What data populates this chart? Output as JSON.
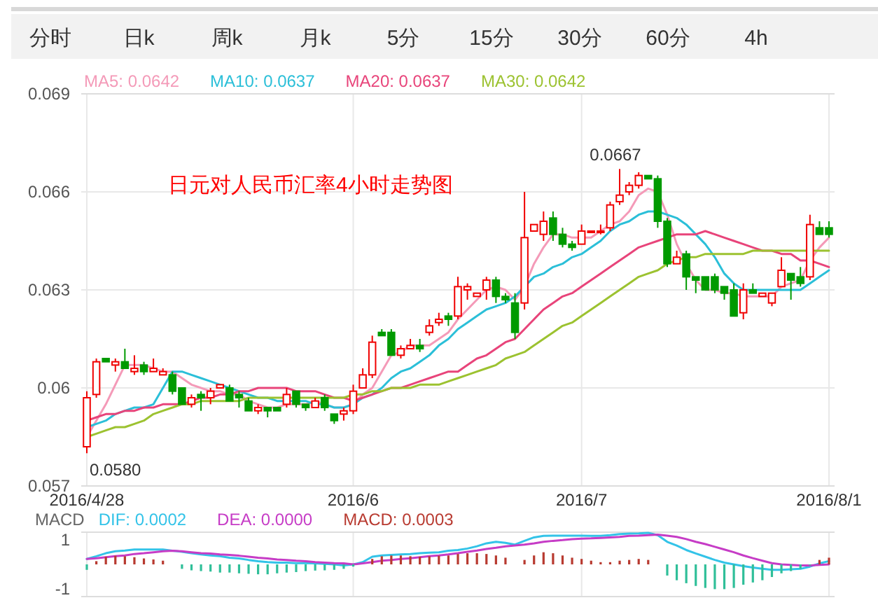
{
  "chart_data": [
    {
      "type": "other",
      "annotations": [
        "分时",
        "日k",
        "周k",
        "月k",
        "5分",
        "15分",
        "30分",
        "60分",
        "4h"
      ]
    },
    {
      "type": "candlestick",
      "grid": true,
      "legend": "top",
      "ylim": [
        0.057,
        0.069
      ],
      "yticks": [
        0.057,
        0.06,
        0.063,
        0.066,
        0.069
      ],
      "categories": [
        "2016/4/28",
        null,
        null,
        null,
        null,
        null,
        null,
        null,
        null,
        null,
        null,
        null,
        null,
        null,
        null,
        null,
        null,
        null,
        null,
        null,
        null,
        null,
        null,
        null,
        null,
        null,
        null,
        null,
        "2016/6",
        null,
        null,
        null,
        null,
        null,
        null,
        null,
        null,
        null,
        null,
        null,
        null,
        null,
        null,
        null,
        null,
        null,
        null,
        null,
        null,
        null,
        null,
        null,
        "2016/7",
        null,
        null,
        null,
        null,
        null,
        null,
        null,
        null,
        null,
        null,
        null,
        null,
        null,
        null,
        null,
        null,
        null,
        null,
        null,
        null,
        null,
        null,
        null,
        null,
        null,
        "2016/8/1"
      ],
      "ohlc": [
        [
          0.0582,
          0.0599,
          0.058,
          0.0597
        ],
        [
          0.0598,
          0.0609,
          0.0597,
          0.0608
        ],
        [
          0.0609,
          0.0609,
          0.0608,
          0.0608
        ],
        [
          0.0607,
          0.0609,
          0.0605,
          0.0608
        ],
        [
          0.0608,
          0.0612,
          0.0606,
          0.0606
        ],
        [
          0.0605,
          0.061,
          0.0604,
          0.0606
        ],
        [
          0.0607,
          0.0608,
          0.0604,
          0.0605
        ],
        [
          0.0605,
          0.0609,
          0.0605,
          0.0606
        ],
        [
          0.0604,
          0.0606,
          0.0604,
          0.0605
        ],
        [
          0.0604,
          0.0605,
          0.0598,
          0.0599
        ],
        [
          0.06,
          0.06,
          0.0595,
          0.0595
        ],
        [
          0.0595,
          0.0598,
          0.0594,
          0.0597
        ],
        [
          0.0598,
          0.0599,
          0.0593,
          0.0597
        ],
        [
          0.0597,
          0.06,
          0.0595,
          0.0599
        ],
        [
          0.06,
          0.0601,
          0.06,
          0.0601
        ],
        [
          0.06,
          0.0601,
          0.0596,
          0.0596
        ],
        [
          0.0598,
          0.0599,
          0.0594,
          0.0597
        ],
        [
          0.0596,
          0.0597,
          0.0593,
          0.0593
        ],
        [
          0.0593,
          0.0595,
          0.0592,
          0.0594
        ],
        [
          0.0594,
          0.0594,
          0.0591,
          0.0593
        ],
        [
          0.0594,
          0.0594,
          0.0593,
          0.0593
        ],
        [
          0.0595,
          0.06,
          0.0594,
          0.0598
        ],
        [
          0.0599,
          0.0599,
          0.0594,
          0.0595
        ],
        [
          0.0595,
          0.0595,
          0.0593,
          0.0594
        ],
        [
          0.0594,
          0.0597,
          0.0594,
          0.0596
        ],
        [
          0.0597,
          0.0598,
          0.0593,
          0.0594
        ],
        [
          0.0592,
          0.0592,
          0.0589,
          0.059
        ],
        [
          0.0592,
          0.0594,
          0.059,
          0.0593
        ],
        [
          0.0593,
          0.0601,
          0.0592,
          0.0599
        ],
        [
          0.06,
          0.0606,
          0.06,
          0.0604
        ],
        [
          0.0604,
          0.0616,
          0.0603,
          0.0614
        ],
        [
          0.0617,
          0.0618,
          0.0616,
          0.0616
        ],
        [
          0.0617,
          0.0618,
          0.061,
          0.061
        ],
        [
          0.061,
          0.0613,
          0.0609,
          0.0612
        ],
        [
          0.0612,
          0.0615,
          0.0612,
          0.0613
        ],
        [
          0.0613,
          0.0615,
          0.0611,
          0.0612
        ],
        [
          0.0617,
          0.0621,
          0.0616,
          0.0619
        ],
        [
          0.062,
          0.0623,
          0.0619,
          0.0621
        ],
        [
          0.0622,
          0.0623,
          0.0619,
          0.0621
        ],
        [
          0.0622,
          0.0634,
          0.0621,
          0.0631
        ],
        [
          0.063,
          0.0632,
          0.0627,
          0.0631
        ],
        [
          0.0628,
          0.0629,
          0.0628,
          0.0629
        ],
        [
          0.063,
          0.0634,
          0.0627,
          0.0633
        ],
        [
          0.0633,
          0.0634,
          0.0626,
          0.0628
        ],
        [
          0.0628,
          0.0629,
          0.0626,
          0.0627
        ],
        [
          0.0626,
          0.0629,
          0.0615,
          0.0617
        ],
        [
          0.0626,
          0.066,
          0.0624,
          0.0646
        ],
        [
          0.0648,
          0.065,
          0.0648,
          0.065
        ],
        [
          0.0647,
          0.0654,
          0.0645,
          0.0651
        ],
        [
          0.0652,
          0.0654,
          0.0645,
          0.0647
        ],
        [
          0.0647,
          0.0649,
          0.0643,
          0.0644
        ],
        [
          0.0644,
          0.0645,
          0.0642,
          0.0643
        ],
        [
          0.0644,
          0.065,
          0.0644,
          0.0648
        ],
        [
          0.0648,
          0.0648,
          0.0648,
          0.0648
        ],
        [
          0.0648,
          0.065,
          0.0647,
          0.0648
        ],
        [
          0.0649,
          0.0657,
          0.0648,
          0.0656
        ],
        [
          0.0657,
          0.0667,
          0.0656,
          0.0659
        ],
        [
          0.066,
          0.0663,
          0.0659,
          0.0662
        ],
        [
          0.0662,
          0.0666,
          0.0661,
          0.0665
        ],
        [
          0.0665,
          0.0665,
          0.0664,
          0.0664
        ],
        [
          0.0664,
          0.0665,
          0.0649,
          0.0651
        ],
        [
          0.0651,
          0.0652,
          0.0637,
          0.0638
        ],
        [
          0.0638,
          0.0642,
          0.0638,
          0.064
        ],
        [
          0.0641,
          0.0642,
          0.063,
          0.0634
        ],
        [
          0.0634,
          0.0634,
          0.0629,
          0.0633
        ],
        [
          0.0634,
          0.0634,
          0.063,
          0.063
        ],
        [
          0.0634,
          0.0635,
          0.0629,
          0.063
        ],
        [
          0.0631,
          0.0631,
          0.0627,
          0.0629
        ],
        [
          0.063,
          0.0632,
          0.0622,
          0.0622
        ],
        [
          0.0623,
          0.0632,
          0.0621,
          0.063
        ],
        [
          0.063,
          0.0632,
          0.0629,
          0.0629
        ],
        [
          0.0628,
          0.0629,
          0.0628,
          0.0629
        ],
        [
          0.0626,
          0.0629,
          0.0625,
          0.0629
        ],
        [
          0.0631,
          0.064,
          0.0631,
          0.0636
        ],
        [
          0.0635,
          0.0635,
          0.0627,
          0.0633
        ],
        [
          0.0634,
          0.0637,
          0.0631,
          0.0632
        ],
        [
          0.0634,
          0.0653,
          0.0633,
          0.065
        ],
        [
          0.0649,
          0.0651,
          0.0647,
          0.0647
        ],
        [
          0.0649,
          0.0651,
          0.0646,
          0.0647
        ]
      ],
      "series": [
        {
          "type": "line",
          "name": "MA5: 0.0642",
          "color": "#f49ab8",
          "values": [
            0.0585,
            0.059,
            0.0595,
            0.0601,
            0.0607,
            0.0607,
            0.0607,
            0.0606,
            0.0605,
            0.0605,
            0.0603,
            0.0601,
            0.06,
            0.0599,
            0.0599,
            0.0598,
            0.0598,
            0.0596,
            0.0595,
            0.0594,
            0.0594,
            0.0595,
            0.0595,
            0.0595,
            0.0596,
            0.0595,
            0.0594,
            0.0594,
            0.0595,
            0.0598,
            0.06,
            0.0605,
            0.061,
            0.0611,
            0.0613,
            0.0613,
            0.0613,
            0.0615,
            0.0617,
            0.0621,
            0.0624,
            0.0627,
            0.063,
            0.0631,
            0.063,
            0.0627,
            0.0631,
            0.0638,
            0.0643,
            0.0647,
            0.0647,
            0.0646,
            0.0646,
            0.0646,
            0.0648,
            0.065,
            0.0651,
            0.0654,
            0.0659,
            0.0661,
            0.066,
            0.0653,
            0.0644,
            0.0638,
            0.0633,
            0.063,
            0.063,
            0.0629,
            0.0629,
            0.0628,
            0.0628,
            0.0628,
            0.0628,
            0.0631,
            0.0632,
            0.0633,
            0.0639,
            0.0643,
            0.0646
          ]
        },
        {
          "type": "line",
          "name": "MA10: 0.0637",
          "color": "#2bbfd8",
          "values": [
            0.0588,
            0.0589,
            0.059,
            0.0592,
            0.0593,
            0.0594,
            0.0594,
            0.0595,
            0.06,
            0.0605,
            0.0605,
            0.0604,
            0.0603,
            0.0602,
            0.0601,
            0.06,
            0.0599,
            0.0598,
            0.0597,
            0.0597,
            0.0596,
            0.0596,
            0.0596,
            0.0596,
            0.0595,
            0.0595,
            0.0594,
            0.0594,
            0.0595,
            0.0597,
            0.0598,
            0.06,
            0.0603,
            0.0605,
            0.0606,
            0.0608,
            0.061,
            0.0613,
            0.0615,
            0.0618,
            0.062,
            0.0622,
            0.0624,
            0.0625,
            0.0626,
            0.0628,
            0.0631,
            0.0634,
            0.0635,
            0.0637,
            0.0638,
            0.064,
            0.0641,
            0.0643,
            0.0645,
            0.0648,
            0.065,
            0.0651,
            0.0653,
            0.0654,
            0.0654,
            0.0653,
            0.0652,
            0.065,
            0.0647,
            0.0644,
            0.064,
            0.0635,
            0.0632,
            0.063,
            0.063,
            0.063,
            0.063,
            0.063,
            0.063,
            0.063,
            0.0632,
            0.0634,
            0.0636
          ]
        },
        {
          "type": "line",
          "name": "MA20: 0.0637",
          "color": "#e8447a",
          "values": [
            0.059,
            0.0591,
            0.0592,
            0.0592,
            0.0593,
            0.0593,
            0.0594,
            0.0594,
            0.0595,
            0.0595,
            0.0595,
            0.0596,
            0.0597,
            0.0597,
            0.0598,
            0.0598,
            0.0599,
            0.0599,
            0.06,
            0.06,
            0.06,
            0.06,
            0.0599,
            0.0599,
            0.0599,
            0.0598,
            0.0597,
            0.0597,
            0.0596,
            0.0597,
            0.0598,
            0.0599,
            0.06,
            0.06,
            0.0601,
            0.0602,
            0.0603,
            0.0604,
            0.0605,
            0.0605,
            0.0607,
            0.0609,
            0.061,
            0.0612,
            0.0614,
            0.0615,
            0.0618,
            0.0621,
            0.0624,
            0.0626,
            0.0628,
            0.0629,
            0.0631,
            0.0633,
            0.0635,
            0.0637,
            0.0639,
            0.0641,
            0.0643,
            0.0644,
            0.0645,
            0.0646,
            0.0647,
            0.0647,
            0.0647,
            0.0648,
            0.0647,
            0.0646,
            0.0645,
            0.0644,
            0.0643,
            0.0642,
            0.0642,
            0.0641,
            0.0641,
            0.0639,
            0.0639,
            0.0638,
            0.0637
          ]
        },
        {
          "type": "line",
          "name": "MA30: 0.0642",
          "color": "#9cc230",
          "values": [
            0.0585,
            0.0586,
            0.0587,
            0.0588,
            0.0588,
            0.0589,
            0.059,
            0.0592,
            0.0593,
            0.0594,
            0.0595,
            0.0595,
            0.0596,
            0.0596,
            0.0596,
            0.0596,
            0.0596,
            0.0597,
            0.0597,
            0.0597,
            0.0597,
            0.0597,
            0.0597,
            0.0597,
            0.0597,
            0.0597,
            0.0597,
            0.0597,
            0.0598,
            0.0598,
            0.0599,
            0.0599,
            0.06,
            0.06,
            0.06,
            0.0601,
            0.0601,
            0.0601,
            0.0602,
            0.0603,
            0.0604,
            0.0605,
            0.0606,
            0.0607,
            0.0609,
            0.061,
            0.0611,
            0.0613,
            0.0615,
            0.0617,
            0.0619,
            0.062,
            0.0622,
            0.0624,
            0.0626,
            0.0628,
            0.063,
            0.0632,
            0.0634,
            0.0635,
            0.0636,
            0.0638,
            0.0639,
            0.064,
            0.064,
            0.0641,
            0.0641,
            0.0641,
            0.0641,
            0.0641,
            0.0642,
            0.0642,
            0.0642,
            0.0642,
            0.0642,
            0.0642,
            0.0642,
            0.0642,
            0.0642
          ]
        }
      ],
      "annotations": [
        "日元对人民币汇率4小时走势图",
        {
          "text": "0.0667",
          "y": 0.0667
        },
        "0.0580"
      ]
    },
    {
      "type": "bar",
      "title": "MACD",
      "grid": "x",
      "legend": "top",
      "tick_labels": "y",
      "ylim": [
        -1.3,
        1.3
      ],
      "yticks": [
        1,
        -1
      ],
      "categories": [
        "2016/4/28",
        null,
        null,
        null,
        null,
        null,
        null,
        null,
        null,
        null,
        null,
        null,
        null,
        null,
        null,
        null,
        null,
        null,
        null,
        null,
        null,
        null,
        null,
        null,
        null,
        null,
        null,
        null,
        "2016/6",
        null,
        null,
        null,
        null,
        null,
        null,
        null,
        null,
        null,
        null,
        null,
        null,
        null,
        null,
        null,
        null,
        null,
        null,
        null,
        null,
        null,
        null,
        null,
        "2016/7",
        null,
        null,
        null,
        null,
        null,
        null,
        null,
        null,
        null,
        null,
        null,
        null,
        null,
        null,
        null,
        null,
        null,
        null,
        null,
        null,
        null,
        null,
        null,
        null,
        null,
        "2016/8/1"
      ],
      "series": [
        {
          "type": "line",
          "name": "DIF: 0.0002",
          "color": "#33c3e8",
          "values": [
            0.22,
            0.33,
            0.45,
            0.53,
            0.56,
            0.6,
            0.6,
            0.6,
            0.6,
            0.55,
            0.51,
            0.45,
            0.4,
            0.36,
            0.33,
            0.27,
            0.24,
            0.18,
            0.13,
            0.09,
            0.07,
            0.07,
            0.05,
            0.05,
            0.04,
            0.02,
            0,
            -0.04,
            0,
            0.09,
            0.31,
            0.36,
            0.38,
            0.4,
            0.42,
            0.45,
            0.47,
            0.49,
            0.55,
            0.58,
            0.64,
            0.73,
            0.85,
            0.91,
            0.87,
            0.8,
            0.95,
            1.09,
            1.15,
            1.16,
            1.16,
            1.16,
            1.16,
            1.15,
            1.15,
            1.18,
            1.22,
            1.24,
            1.25,
            1.27,
            1.18,
            0.91,
            0.76,
            0.58,
            0.44,
            0.31,
            0.18,
            0.07,
            0,
            -0.07,
            -0.13,
            -0.18,
            -0.22,
            -0.22,
            -0.2,
            -0.18,
            -0.09,
            0.04,
            0.13
          ]
        },
        {
          "type": "line",
          "name": "DEA: 0.0000",
          "color": "#c63cc6",
          "values": [
            0.22,
            0.25,
            0.29,
            0.33,
            0.36,
            0.42,
            0.45,
            0.49,
            0.53,
            0.55,
            0.53,
            0.49,
            0.45,
            0.44,
            0.4,
            0.38,
            0.35,
            0.31,
            0.27,
            0.24,
            0.2,
            0.18,
            0.15,
            0.13,
            0.09,
            0.07,
            0.05,
            0.04,
            0,
            0.04,
            0.09,
            0.15,
            0.18,
            0.22,
            0.25,
            0.29,
            0.33,
            0.36,
            0.4,
            0.45,
            0.51,
            0.56,
            0.62,
            0.67,
            0.73,
            0.76,
            0.8,
            0.85,
            0.91,
            0.95,
            0.98,
            1.02,
            1.04,
            1.05,
            1.07,
            1.09,
            1.11,
            1.15,
            1.16,
            1.18,
            1.2,
            1.16,
            1.11,
            1.02,
            0.91,
            0.82,
            0.71,
            0.6,
            0.49,
            0.36,
            0.25,
            0.15,
            0.05,
            0,
            -0.02,
            -0.04,
            -0.04,
            -0.02,
            0
          ]
        },
        {
          "type": "bar",
          "name": "MACD: 0.0003",
          "color": "#b83a30",
          "values": [
            -0.22,
            0.13,
            0.31,
            0.35,
            0.33,
            0.29,
            0.24,
            0.2,
            0.15,
            0,
            -0.18,
            -0.24,
            -0.27,
            -0.29,
            -0.33,
            -0.33,
            -0.36,
            -0.38,
            -0.4,
            -0.4,
            -0.36,
            -0.33,
            -0.31,
            -0.27,
            -0.25,
            -0.24,
            -0.22,
            -0.18,
            -0.09,
            0,
            0.22,
            0.33,
            0.36,
            0.36,
            0.33,
            0.31,
            0.33,
            0.35,
            0.36,
            0.42,
            0.45,
            0.45,
            0.42,
            0.36,
            0.27,
            0,
            0.18,
            0.36,
            0.49,
            0.45,
            0.36,
            0.27,
            0.22,
            0.15,
            0.09,
            0.09,
            0.15,
            0.18,
            0.22,
            0.18,
            0,
            -0.45,
            -0.64,
            -0.76,
            -0.87,
            -0.95,
            -1.0,
            -1.0,
            -0.95,
            -0.82,
            -0.73,
            -0.64,
            -0.51,
            -0.36,
            -0.27,
            -0.18,
            -0.04,
            0.18,
            0.27
          ],
          "colors": [
            "#30bf99",
            "#b83a30",
            "#b83a30",
            "#b83a30",
            "#b83a30",
            "#b83a30",
            "#b83a30",
            "#b83a30",
            "#b83a30",
            "#b83a30",
            "#30bf99",
            "#30bf99",
            "#30bf99",
            "#30bf99",
            "#30bf99",
            "#30bf99",
            "#30bf99",
            "#30bf99",
            "#30bf99",
            "#30bf99",
            "#30bf99",
            "#30bf99",
            "#30bf99",
            "#30bf99",
            "#30bf99",
            "#30bf99",
            "#30bf99",
            "#30bf99",
            "#30bf99",
            "#b83a30",
            "#b83a30",
            "#b83a30",
            "#b83a30",
            "#b83a30",
            "#b83a30",
            "#b83a30",
            "#b83a30",
            "#b83a30",
            "#b83a30",
            "#b83a30",
            "#b83a30",
            "#b83a30",
            "#b83a30",
            "#b83a30",
            "#b83a30",
            "#b83a30",
            "#b83a30",
            "#b83a30",
            "#b83a30",
            "#b83a30",
            "#b83a30",
            "#b83a30",
            "#b83a30",
            "#b83a30",
            "#b83a30",
            "#b83a30",
            "#b83a30",
            "#b83a30",
            "#b83a30",
            "#b83a30",
            "#b83a30",
            "#30bf99",
            "#30bf99",
            "#30bf99",
            "#30bf99",
            "#30bf99",
            "#30bf99",
            "#30bf99",
            "#30bf99",
            "#30bf99",
            "#30bf99",
            "#30bf99",
            "#30bf99",
            "#30bf99",
            "#30bf99",
            "#30bf99",
            "#30bf99",
            "#b83a30",
            "#b83a30"
          ]
        }
      ]
    }
  ]
}
